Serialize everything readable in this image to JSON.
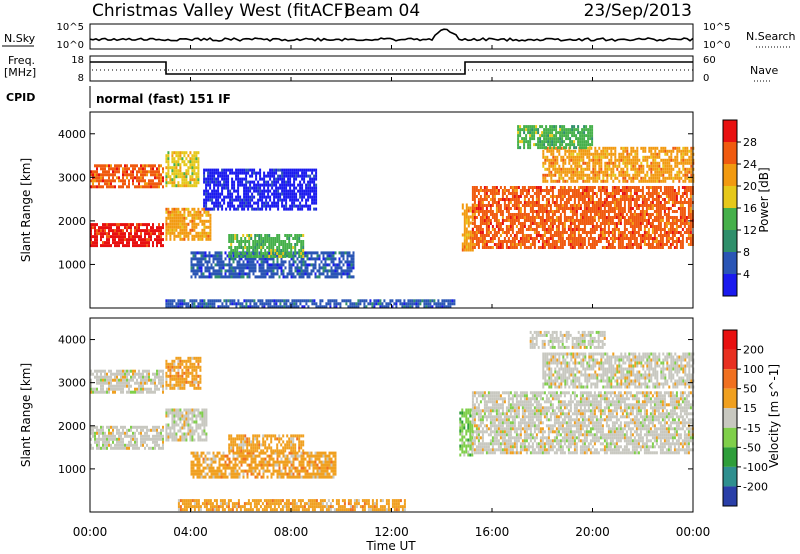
{
  "header": {
    "station": "Christmas Valley West (fitACF)",
    "beam": "Beam 04",
    "date": "23/Sep/2013"
  },
  "status_panel": {
    "nsky_label": "N.Sky",
    "nsky_ticks": [
      "10^5",
      "10^0"
    ],
    "nsearch_label": "N.Search",
    "nsearch_ticks": [
      "10^5",
      "10^0"
    ],
    "freq_label": "Freq.",
    "freq_unit": "[MHz]",
    "freq_ticks": [
      "18",
      "8"
    ],
    "nave_label": "Nave",
    "nave_ticks": [
      "60",
      "0"
    ],
    "cpid_label": "CPID",
    "cpid_value": "normal (fast) 151 IF"
  },
  "chart_data": [
    {
      "type": "heatmap",
      "panel": "power",
      "xlabel": "",
      "ylabel": "Slant Range [km]",
      "x_range_hours": [
        0,
        24
      ],
      "ylim": [
        0,
        4500
      ],
      "yticks": [
        "1000",
        "2000",
        "3000",
        "4000"
      ],
      "colorbar_label": "Power [dB]",
      "colorbar_ticks": [
        "4",
        "8",
        "12",
        "16",
        "20",
        "24",
        "28"
      ],
      "colorbar_colors": [
        "#1a1aee",
        "#2a55b5",
        "#2f8f6b",
        "#45b04a",
        "#e6c81a",
        "#f29a10",
        "#f05a0f",
        "#e81010"
      ],
      "echo_regions": [
        {
          "x": [
            0.0,
            2.9
          ],
          "y": [
            1450,
            1950
          ],
          "level": 7
        },
        {
          "x": [
            0.0,
            2.9
          ],
          "y": [
            2800,
            3300
          ],
          "level": 6
        },
        {
          "x": [
            3.0,
            4.8
          ],
          "y": [
            1600,
            2300
          ],
          "level": 5
        },
        {
          "x": [
            3.0,
            4.3
          ],
          "y": [
            2800,
            3600
          ],
          "level": 4
        },
        {
          "x": [
            4.0,
            10.5
          ],
          "y": [
            700,
            1300
          ],
          "level": 1
        },
        {
          "x": [
            5.5,
            8.5
          ],
          "y": [
            1200,
            1700
          ],
          "level": 3
        },
        {
          "x": [
            4.5,
            9.0
          ],
          "y": [
            2300,
            3200
          ],
          "level": 0
        },
        {
          "x": [
            14.8,
            15.2
          ],
          "y": [
            1300,
            2400
          ],
          "level": 5
        },
        {
          "x": [
            15.2,
            24.0
          ],
          "y": [
            1400,
            2800
          ],
          "level": 6
        },
        {
          "x": [
            18.0,
            24.0
          ],
          "y": [
            2900,
            3700
          ],
          "level": 5
        },
        {
          "x": [
            17.0,
            20.0
          ],
          "y": [
            3700,
            4200
          ],
          "level": 3
        },
        {
          "x": [
            3.0,
            14.5
          ],
          "y": [
            0,
            200
          ],
          "level": 1
        }
      ]
    },
    {
      "type": "heatmap",
      "panel": "velocity",
      "xlabel": "Time UT",
      "ylabel": "Slant Range [km]",
      "x_range_hours": [
        0,
        24
      ],
      "xticks": [
        "00:00",
        "04:00",
        "08:00",
        "12:00",
        "16:00",
        "20:00",
        "00:00"
      ],
      "ylim": [
        0,
        4500
      ],
      "yticks": [
        "1000",
        "2000",
        "3000",
        "4000"
      ],
      "colorbar_label": "Velocity [m s^-1]",
      "colorbar_ticks": [
        "200",
        "100",
        "50",
        "15",
        "-15",
        "-50",
        "-100",
        "-200"
      ],
      "colorbar_colors": [
        "#2a3fa8",
        "#2f8f8f",
        "#2e9e3a",
        "#7fcf4a",
        "#c8c8c0",
        "#f0a020",
        "#f07020",
        "#e83020",
        "#e81010"
      ],
      "echo_regions": [
        {
          "x": [
            0.0,
            2.9
          ],
          "y": [
            1450,
            2000
          ],
          "level": 4
        },
        {
          "x": [
            0.0,
            2.9
          ],
          "y": [
            2800,
            3300
          ],
          "level": 4
        },
        {
          "x": [
            3.0,
            4.6
          ],
          "y": [
            1650,
            2400
          ],
          "level": 4
        },
        {
          "x": [
            3.0,
            4.4
          ],
          "y": [
            2900,
            3600
          ],
          "level": 5
        },
        {
          "x": [
            4.0,
            9.8
          ],
          "y": [
            800,
            1400
          ],
          "level": 5
        },
        {
          "x": [
            5.5,
            8.5
          ],
          "y": [
            1400,
            1800
          ],
          "level": 5
        },
        {
          "x": [
            3.5,
            12.5
          ],
          "y": [
            50,
            300
          ],
          "level": 5
        },
        {
          "x": [
            14.7,
            15.2
          ],
          "y": [
            1300,
            2400
          ],
          "level": 3
        },
        {
          "x": [
            15.2,
            24.0
          ],
          "y": [
            1400,
            2800
          ],
          "level": 4
        },
        {
          "x": [
            18.0,
            24.0
          ],
          "y": [
            2900,
            3700
          ],
          "level": 4
        },
        {
          "x": [
            17.5,
            20.5
          ],
          "y": [
            3800,
            4200
          ],
          "level": 4
        }
      ]
    }
  ]
}
